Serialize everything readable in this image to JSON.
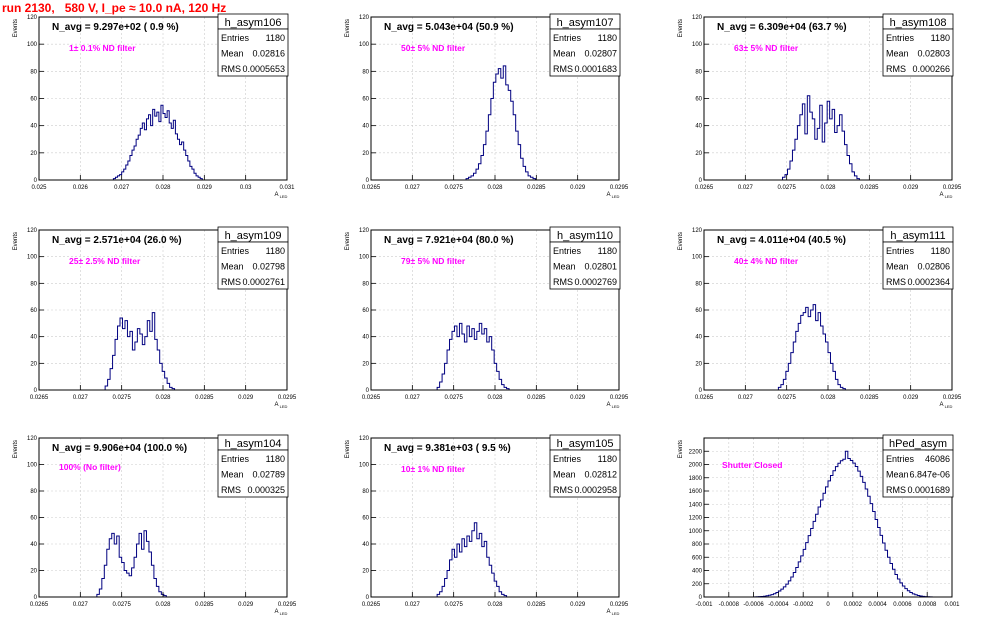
{
  "title": "run 2130,   580 V, I_pe ≈ 10.0 nA, 120 Hz",
  "colors": {
    "title": "#ff0000",
    "annotation": "#ff00ff",
    "histogram": "#000080",
    "grid": "#cccccc"
  },
  "chart_data": [
    {
      "type": "bar",
      "name": "h_asym106",
      "ylabel": "Events",
      "xlabel": "A_LED",
      "xlim": [
        0.025,
        0.031
      ],
      "ylim": [
        0,
        120
      ],
      "grid": true,
      "xticks": [
        "0.025",
        "0.026",
        "0.027",
        "0.028",
        "0.029",
        "0.03",
        "0.031"
      ],
      "xtick_values": [
        0.025,
        0.026,
        0.027,
        0.028,
        0.029,
        0.03,
        0.031
      ],
      "yticks": [
        "0",
        "20",
        "40",
        "60",
        "80",
        "100",
        "120"
      ],
      "header": "N_avg = 9.297e+02 ( 0.9 %)",
      "annotation": "1± 0.1% ND filter",
      "stats": {
        "entries": "1180",
        "mean": "0.02816",
        "rms": "0.0005653"
      },
      "hist": {
        "start": 0.0268,
        "width": 5e-05,
        "counts": [
          1,
          2,
          3,
          4,
          6,
          8,
          11,
          14,
          18,
          22,
          25,
          30,
          33,
          38,
          42,
          37,
          45,
          48,
          40,
          52,
          47,
          50,
          43,
          55,
          49,
          46,
          51,
          42,
          38,
          44,
          34,
          30,
          26,
          28,
          22,
          18,
          14,
          10,
          8,
          5,
          3,
          2,
          1
        ]
      }
    },
    {
      "type": "bar",
      "name": "h_asym107",
      "ylabel": "Events",
      "xlabel": "A_LED",
      "xlim": [
        0.0265,
        0.0295
      ],
      "ylim": [
        0,
        120
      ],
      "grid": true,
      "xticks": [
        "0.0265",
        "0.027",
        "0.0275",
        "0.028",
        "0.0285",
        "0.029",
        "0.0295"
      ],
      "xtick_values": [
        0.0265,
        0.027,
        0.0275,
        0.028,
        0.0285,
        0.029,
        0.0295
      ],
      "yticks": [
        "0",
        "20",
        "40",
        "60",
        "80",
        "100",
        "120"
      ],
      "header": "N_avg = 5.043e+04 (50.9 %)",
      "annotation": "50± 5% ND filter",
      "stats": {
        "entries": "1180",
        "mean": "0.02807",
        "rms": "0.0001683"
      },
      "hist": {
        "start": 0.02765,
        "width": 3e-05,
        "counts": [
          1,
          2,
          3,
          5,
          8,
          12,
          18,
          26,
          36,
          48,
          60,
          72,
          78,
          82,
          75,
          84,
          70,
          66,
          58,
          48,
          36,
          26,
          16,
          10,
          6,
          3,
          2,
          1
        ]
      }
    },
    {
      "type": "bar",
      "name": "h_asym108",
      "ylabel": "Events",
      "xlabel": "A_LED",
      "xlim": [
        0.0265,
        0.0295
      ],
      "ylim": [
        0,
        120
      ],
      "grid": true,
      "xticks": [
        "0.0265",
        "0.027",
        "0.0275",
        "0.028",
        "0.0285",
        "0.029",
        "0.0295"
      ],
      "xtick_values": [
        0.0265,
        0.027,
        0.0275,
        0.028,
        0.0285,
        0.029,
        0.0295
      ],
      "yticks": [
        "0",
        "20",
        "40",
        "60",
        "80",
        "100",
        "120"
      ],
      "header": "N_avg = 6.309e+04 (63.7 %)",
      "annotation": "63± 5% ND filter",
      "stats": {
        "entries": "1180",
        "mean": "0.02803",
        "rms": "0.000266"
      },
      "hist": {
        "start": 0.02745,
        "width": 3e-05,
        "counts": [
          2,
          4,
          8,
          14,
          22,
          30,
          40,
          48,
          56,
          34,
          62,
          50,
          45,
          30,
          38,
          55,
          28,
          42,
          58,
          45,
          52,
          35,
          40,
          48,
          36,
          26,
          18,
          12,
          6,
          3,
          1
        ]
      }
    },
    {
      "type": "bar",
      "name": "h_asym109",
      "ylabel": "Events",
      "xlabel": "A_LED",
      "xlim": [
        0.0265,
        0.0295
      ],
      "ylim": [
        0,
        120
      ],
      "grid": true,
      "xticks": [
        "0.0265",
        "0.027",
        "0.0275",
        "0.028",
        "0.0285",
        "0.029",
        "0.0295"
      ],
      "xtick_values": [
        0.0265,
        0.027,
        0.0275,
        0.028,
        0.0285,
        0.029,
        0.0295
      ],
      "yticks": [
        "0",
        "20",
        "40",
        "60",
        "80",
        "100",
        "120"
      ],
      "header": "N_avg = 2.571e+04 (26.0 %)",
      "annotation": "25± 2.5% ND filter",
      "stats": {
        "entries": "1180",
        "mean": "0.02798",
        "rms": "0.0002761"
      },
      "hist": {
        "start": 0.0273,
        "width": 3e-05,
        "counts": [
          3,
          8,
          16,
          26,
          38,
          48,
          54,
          46,
          52,
          40,
          44,
          30,
          36,
          46,
          42,
          34,
          40,
          52,
          44,
          58,
          38,
          30,
          20,
          14,
          9,
          5,
          2,
          1
        ]
      }
    },
    {
      "type": "bar",
      "name": "h_asym110",
      "ylabel": "Events",
      "xlabel": "A_LED",
      "xlim": [
        0.0265,
        0.0295
      ],
      "ylim": [
        0,
        120
      ],
      "grid": true,
      "xticks": [
        "0.0265",
        "0.027",
        "0.0275",
        "0.028",
        "0.0285",
        "0.029",
        "0.0295"
      ],
      "xtick_values": [
        0.0265,
        0.027,
        0.0275,
        0.028,
        0.0285,
        0.029,
        0.0295
      ],
      "yticks": [
        "0",
        "20",
        "40",
        "60",
        "80",
        "100",
        "120"
      ],
      "header": "N_avg = 7.921e+04 (80.0 %)",
      "annotation": "79± 5% ND filter",
      "stats": {
        "entries": "1180",
        "mean": "0.02801",
        "rms": "0.0002769"
      },
      "hist": {
        "start": 0.0273,
        "width": 3e-05,
        "counts": [
          2,
          6,
          12,
          20,
          30,
          38,
          44,
          48,
          40,
          50,
          42,
          36,
          48,
          40,
          46,
          38,
          44,
          50,
          42,
          46,
          36,
          40,
          30,
          20,
          14,
          8,
          4,
          2,
          1
        ]
      }
    },
    {
      "type": "bar",
      "name": "h_asym111",
      "ylabel": "Events",
      "xlabel": "A_LED",
      "xlim": [
        0.0265,
        0.0295
      ],
      "ylim": [
        0,
        120
      ],
      "grid": true,
      "xticks": [
        "0.0265",
        "0.027",
        "0.0275",
        "0.028",
        "0.0285",
        "0.029",
        "0.0295"
      ],
      "xtick_values": [
        0.0265,
        0.027,
        0.0275,
        0.028,
        0.0285,
        0.029,
        0.0295
      ],
      "yticks": [
        "0",
        "20",
        "40",
        "60",
        "80",
        "100",
        "120"
      ],
      "header": "N_avg = 4.011e+04 (40.5 %)",
      "annotation": "40± 4% ND filter",
      "stats": {
        "entries": "1180",
        "mean": "0.02806",
        "rms": "0.0002364"
      },
      "hist": {
        "start": 0.0274,
        "width": 3e-05,
        "counts": [
          2,
          4,
          8,
          14,
          20,
          28,
          36,
          44,
          50,
          56,
          58,
          62,
          55,
          60,
          64,
          52,
          58,
          48,
          42,
          36,
          28,
          20,
          14,
          8,
          4,
          2,
          1
        ]
      }
    },
    {
      "type": "bar",
      "name": "h_asym104",
      "ylabel": "Events",
      "xlabel": "A_LED",
      "xlim": [
        0.0265,
        0.0295
      ],
      "ylim": [
        0,
        120
      ],
      "grid": true,
      "xticks": [
        "0.0265",
        "0.027",
        "0.0275",
        "0.028",
        "0.0285",
        "0.029",
        "0.0295"
      ],
      "xtick_values": [
        0.0265,
        0.027,
        0.0275,
        0.028,
        0.0285,
        0.029,
        0.0295
      ],
      "yticks": [
        "0",
        "20",
        "40",
        "60",
        "80",
        "100",
        "120"
      ],
      "header": "N_avg = 9.906e+04 (100.0 %)",
      "annotation": "100% (No filter)",
      "stats": {
        "entries": "1180",
        "mean": "0.02789",
        "rms": "0.000325"
      },
      "hist": {
        "start": 0.0272,
        "width": 3e-05,
        "counts": [
          2,
          6,
          14,
          24,
          36,
          44,
          48,
          40,
          46,
          30,
          26,
          20,
          18,
          16,
          22,
          30,
          40,
          48,
          36,
          50,
          42,
          34,
          24,
          14,
          8,
          4,
          2,
          1
        ]
      }
    },
    {
      "type": "bar",
      "name": "h_asym105",
      "ylabel": "Events",
      "xlabel": "A_LED",
      "xlim": [
        0.0265,
        0.0295
      ],
      "ylim": [
        0,
        120
      ],
      "grid": true,
      "xticks": [
        "0.0265",
        "0.027",
        "0.0275",
        "0.028",
        "0.0285",
        "0.029",
        "0.0295"
      ],
      "xtick_values": [
        0.0265,
        0.027,
        0.0275,
        0.028,
        0.0285,
        0.029,
        0.0295
      ],
      "yticks": [
        "0",
        "20",
        "40",
        "60",
        "80",
        "100",
        "120"
      ],
      "header": "N_avg = 9.381e+03 ( 9.5 %)",
      "annotation": "10± 1% ND filter",
      "stats": {
        "entries": "1180",
        "mean": "0.02812",
        "rms": "0.0002958"
      },
      "hist": {
        "start": 0.0273,
        "width": 3e-05,
        "counts": [
          2,
          4,
          8,
          14,
          20,
          28,
          36,
          30,
          40,
          34,
          44,
          38,
          46,
          42,
          50,
          56,
          44,
          48,
          38,
          42,
          30,
          24,
          18,
          12,
          8,
          4,
          2,
          1
        ]
      }
    },
    {
      "type": "bar",
      "name": "hPed_asym",
      "ylabel": "Events",
      "xlabel": "",
      "xlim": [
        -0.001,
        0.001
      ],
      "ylim": [
        0,
        2400
      ],
      "grid": true,
      "xticks": [
        "-0.001",
        "-0.0008",
        "-0.0006",
        "-0.0004",
        "-0.0002",
        "0",
        "0.0002",
        "0.0004",
        "0.0006",
        "0.0008",
        "0.001"
      ],
      "xtick_values": [
        -0.001,
        -0.0008,
        -0.0006,
        -0.0004,
        -0.0002,
        0,
        0.0002,
        0.0004,
        0.0006,
        0.0008,
        0.001
      ],
      "yticks": [
        "0",
        "200",
        "400",
        "600",
        "800",
        "1000",
        "1200",
        "1400",
        "1600",
        "1800",
        "2000",
        "2200"
      ],
      "header": "",
      "annotation": "Shutter Closed",
      "stats": {
        "entries": "46086",
        "mean": "6.847e-06",
        "rms": "0.0001689"
      },
      "hist": {
        "start": -0.0006,
        "width": 2e-05,
        "counts": [
          2,
          3,
          5,
          8,
          12,
          18,
          26,
          36,
          50,
          68,
          90,
          118,
          152,
          194,
          244,
          302,
          370,
          446,
          530,
          620,
          718,
          820,
          926,
          1034,
          1142,
          1250,
          1358,
          1464,
          1566,
          1662,
          1752,
          1834,
          1906,
          1968,
          2018,
          2056,
          2080,
          2200,
          2090,
          2060,
          2020,
          1970,
          1900,
          1820,
          1730,
          1630,
          1520,
          1410,
          1290,
          1170,
          1050,
          930,
          815,
          705,
          600,
          505,
          418,
          340,
          272,
          214,
          166,
          126,
          94,
          68,
          48,
          34,
          23,
          15,
          10,
          6,
          4,
          2
        ]
      }
    }
  ]
}
